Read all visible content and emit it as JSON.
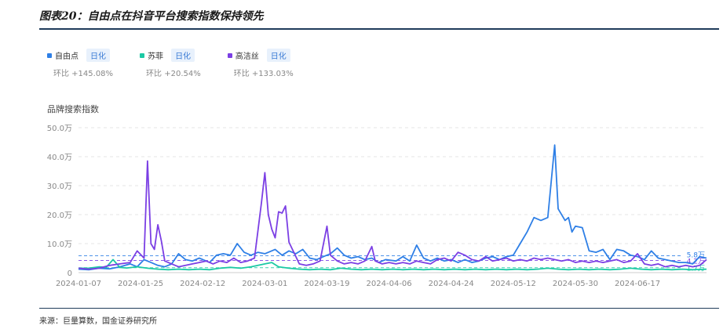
{
  "header": {
    "title": "图表20：自由点在抖音平台搜索指数保持领先"
  },
  "legend": [
    {
      "name": "自由点",
      "tag": "日化",
      "change": "环比 +145.08%",
      "color": "#2e7fe6"
    },
    {
      "name": "苏菲",
      "tag": "日化",
      "change": "环比 +20.54%",
      "color": "#1cc9a4"
    },
    {
      "name": "高洁丝",
      "tag": "日化",
      "change": "环比 +133.03%",
      "color": "#7b3fe4"
    }
  ],
  "chart_label": "品牌搜索指数",
  "footer": {
    "source": "来源：巨量算数，国金证券研究所"
  },
  "chart_data": {
    "type": "line",
    "title": "",
    "xlabel": "",
    "ylabel": "品牌搜索指数",
    "ylim": [
      0,
      50
    ],
    "y_ticks": [
      0,
      10,
      20,
      30,
      40,
      50
    ],
    "y_tick_labels": [
      "0",
      "10.0万",
      "20.0万",
      "30.0万",
      "40.0万",
      "50.0万"
    ],
    "x_range": [
      "2024-01-07",
      "2024-07-07"
    ],
    "x_tick_labels": [
      "2024-01-07",
      "2024-01-25",
      "2024-02-12",
      "2024-03-01",
      "2024-03-19",
      "2024-04-06",
      "2024-04-24",
      "2024-05-12",
      "2024-05-30",
      "2024-06-17"
    ],
    "grid": true,
    "legend_position": "top-left",
    "averages": [
      {
        "series": "自由点",
        "label": "5.8万",
        "value": 5.8,
        "color": "#2e7fe6"
      },
      {
        "series": "高洁丝",
        "label": "4.2万",
        "value": 4.2,
        "color": "#7b3fe4"
      },
      {
        "series": "苏菲",
        "label": "1.7万",
        "value": 1.7,
        "color": "#1cc9a4"
      }
    ],
    "series": [
      {
        "name": "自由点",
        "color": "#2e7fe6",
        "points": [
          [
            "2024-01-07",
            1.2
          ],
          [
            "2024-01-10",
            1.0
          ],
          [
            "2024-01-13",
            1.5
          ],
          [
            "2024-01-16",
            1.3
          ],
          [
            "2024-01-19",
            2.0
          ],
          [
            "2024-01-22",
            3.0
          ],
          [
            "2024-01-24",
            2.0
          ],
          [
            "2024-01-26",
            4.5
          ],
          [
            "2024-01-28",
            3.5
          ],
          [
            "2024-01-30",
            2.5
          ],
          [
            "2024-02-01",
            2.0
          ],
          [
            "2024-02-03",
            3.0
          ],
          [
            "2024-02-05",
            6.5
          ],
          [
            "2024-02-07",
            4.5
          ],
          [
            "2024-02-09",
            4.0
          ],
          [
            "2024-02-11",
            5.0
          ],
          [
            "2024-02-14",
            3.5
          ],
          [
            "2024-02-16",
            6.0
          ],
          [
            "2024-02-18",
            6.5
          ],
          [
            "2024-02-20",
            6.0
          ],
          [
            "2024-02-22",
            10.0
          ],
          [
            "2024-02-24",
            7.0
          ],
          [
            "2024-02-26",
            6.0
          ],
          [
            "2024-02-28",
            7.0
          ],
          [
            "2024-03-01",
            6.5
          ],
          [
            "2024-03-04",
            8.0
          ],
          [
            "2024-03-06",
            6.0
          ],
          [
            "2024-03-08",
            7.5
          ],
          [
            "2024-03-10",
            6.5
          ],
          [
            "2024-03-12",
            8.0
          ],
          [
            "2024-03-14",
            5.0
          ],
          [
            "2024-03-16",
            4.5
          ],
          [
            "2024-03-18",
            5.5
          ],
          [
            "2024-03-20",
            6.5
          ],
          [
            "2024-03-22",
            8.5
          ],
          [
            "2024-03-24",
            6.0
          ],
          [
            "2024-03-26",
            5.0
          ],
          [
            "2024-03-28",
            5.5
          ],
          [
            "2024-03-30",
            4.5
          ],
          [
            "2024-04-01",
            5.0
          ],
          [
            "2024-04-03",
            3.5
          ],
          [
            "2024-04-05",
            4.5
          ],
          [
            "2024-04-08",
            4.0
          ],
          [
            "2024-04-10",
            5.5
          ],
          [
            "2024-04-12",
            4.0
          ],
          [
            "2024-04-14",
            9.5
          ],
          [
            "2024-04-16",
            5.0
          ],
          [
            "2024-04-18",
            4.0
          ],
          [
            "2024-04-20",
            5.0
          ],
          [
            "2024-04-22",
            4.0
          ],
          [
            "2024-04-24",
            4.5
          ],
          [
            "2024-04-26",
            3.5
          ],
          [
            "2024-04-28",
            4.5
          ],
          [
            "2024-04-30",
            3.5
          ],
          [
            "2024-05-02",
            4.0
          ],
          [
            "2024-05-04",
            5.0
          ],
          [
            "2024-05-06",
            5.5
          ],
          [
            "2024-05-08",
            4.5
          ],
          [
            "2024-05-10",
            5.5
          ],
          [
            "2024-05-12",
            6.0
          ],
          [
            "2024-05-14",
            10.0
          ],
          [
            "2024-05-16",
            14.0
          ],
          [
            "2024-05-18",
            19.0
          ],
          [
            "2024-05-20",
            18.0
          ],
          [
            "2024-05-22",
            19.0
          ],
          [
            "2024-05-24",
            44.0
          ],
          [
            "2024-05-25",
            22.0
          ],
          [
            "2024-05-27",
            18.0
          ],
          [
            "2024-05-28",
            19.0
          ],
          [
            "2024-05-29",
            14.0
          ],
          [
            "2024-05-30",
            16.0
          ],
          [
            "2024-06-01",
            15.5
          ],
          [
            "2024-06-03",
            7.5
          ],
          [
            "2024-06-05",
            7.0
          ],
          [
            "2024-06-07",
            8.0
          ],
          [
            "2024-06-09",
            4.5
          ],
          [
            "2024-06-11",
            8.0
          ],
          [
            "2024-06-13",
            7.5
          ],
          [
            "2024-06-15",
            6.0
          ],
          [
            "2024-06-17",
            5.5
          ],
          [
            "2024-06-19",
            4.5
          ],
          [
            "2024-06-21",
            7.5
          ],
          [
            "2024-06-23",
            5.0
          ],
          [
            "2024-06-25",
            4.5
          ],
          [
            "2024-06-27",
            4.0
          ],
          [
            "2024-06-29",
            3.5
          ],
          [
            "2024-07-01",
            3.5
          ],
          [
            "2024-07-03",
            3.0
          ],
          [
            "2024-07-05",
            5.5
          ],
          [
            "2024-07-07",
            5.0
          ]
        ]
      },
      {
        "name": "苏菲",
        "color": "#1cc9a4",
        "points": [
          [
            "2024-01-07",
            1.5
          ],
          [
            "2024-01-10",
            1.5
          ],
          [
            "2024-01-13",
            2.0
          ],
          [
            "2024-01-15",
            1.8
          ],
          [
            "2024-01-17",
            4.5
          ],
          [
            "2024-01-19",
            1.8
          ],
          [
            "2024-01-21",
            1.6
          ],
          [
            "2024-01-24",
            2.0
          ],
          [
            "2024-01-27",
            1.5
          ],
          [
            "2024-01-30",
            1.2
          ],
          [
            "2024-02-02",
            1.0
          ],
          [
            "2024-02-05",
            1.2
          ],
          [
            "2024-02-08",
            1.0
          ],
          [
            "2024-02-11",
            1.2
          ],
          [
            "2024-02-14",
            1.0
          ],
          [
            "2024-02-17",
            1.5
          ],
          [
            "2024-02-20",
            1.8
          ],
          [
            "2024-02-23",
            1.5
          ],
          [
            "2024-02-26",
            2.0
          ],
          [
            "2024-03-01",
            3.0
          ],
          [
            "2024-03-03",
            3.5
          ],
          [
            "2024-03-05",
            2.0
          ],
          [
            "2024-03-08",
            1.5
          ],
          [
            "2024-03-11",
            1.2
          ],
          [
            "2024-03-14",
            1.0
          ],
          [
            "2024-03-17",
            1.2
          ],
          [
            "2024-03-20",
            1.0
          ],
          [
            "2024-03-23",
            1.5
          ],
          [
            "2024-03-26",
            1.2
          ],
          [
            "2024-03-29",
            1.0
          ],
          [
            "2024-04-01",
            1.2
          ],
          [
            "2024-04-04",
            1.0
          ],
          [
            "2024-04-07",
            1.2
          ],
          [
            "2024-04-10",
            1.0
          ],
          [
            "2024-04-13",
            1.2
          ],
          [
            "2024-04-16",
            1.0
          ],
          [
            "2024-04-19",
            1.2
          ],
          [
            "2024-04-22",
            1.0
          ],
          [
            "2024-04-25",
            1.2
          ],
          [
            "2024-04-28",
            1.0
          ],
          [
            "2024-05-01",
            1.2
          ],
          [
            "2024-05-04",
            1.0
          ],
          [
            "2024-05-07",
            1.2
          ],
          [
            "2024-05-10",
            1.0
          ],
          [
            "2024-05-13",
            1.2
          ],
          [
            "2024-05-16",
            1.0
          ],
          [
            "2024-05-19",
            1.2
          ],
          [
            "2024-05-22",
            1.5
          ],
          [
            "2024-05-25",
            1.2
          ],
          [
            "2024-05-28",
            1.0
          ],
          [
            "2024-05-31",
            1.2
          ],
          [
            "2024-06-03",
            1.0
          ],
          [
            "2024-06-06",
            1.2
          ],
          [
            "2024-06-09",
            1.0
          ],
          [
            "2024-06-12",
            1.2
          ],
          [
            "2024-06-15",
            1.5
          ],
          [
            "2024-06-18",
            1.2
          ],
          [
            "2024-06-21",
            1.0
          ],
          [
            "2024-06-24",
            1.2
          ],
          [
            "2024-06-27",
            1.0
          ],
          [
            "2024-06-30",
            1.2
          ],
          [
            "2024-07-03",
            1.0
          ],
          [
            "2024-07-07",
            1.2
          ]
        ]
      },
      {
        "name": "高洁丝",
        "color": "#7b3fe4",
        "points": [
          [
            "2024-01-07",
            1.5
          ],
          [
            "2024-01-10",
            1.2
          ],
          [
            "2024-01-13",
            1.5
          ],
          [
            "2024-01-16",
            2.5
          ],
          [
            "2024-01-19",
            3.0
          ],
          [
            "2024-01-22",
            3.5
          ],
          [
            "2024-01-24",
            7.5
          ],
          [
            "2024-01-26",
            5.0
          ],
          [
            "2024-01-27",
            38.5
          ],
          [
            "2024-01-28",
            10.0
          ],
          [
            "2024-01-29",
            8.0
          ],
          [
            "2024-01-30",
            16.5
          ],
          [
            "2024-01-31",
            11.0
          ],
          [
            "2024-02-01",
            4.0
          ],
          [
            "2024-02-03",
            3.0
          ],
          [
            "2024-02-05",
            2.0
          ],
          [
            "2024-02-07",
            2.5
          ],
          [
            "2024-02-09",
            3.0
          ],
          [
            "2024-02-11",
            3.5
          ],
          [
            "2024-02-13",
            4.0
          ],
          [
            "2024-02-15",
            3.0
          ],
          [
            "2024-02-17",
            4.0
          ],
          [
            "2024-02-19",
            3.5
          ],
          [
            "2024-02-21",
            5.0
          ],
          [
            "2024-02-23",
            3.5
          ],
          [
            "2024-02-25",
            4.0
          ],
          [
            "2024-02-27",
            5.0
          ],
          [
            "2024-02-29",
            24.0
          ],
          [
            "2024-03-01",
            34.5
          ],
          [
            "2024-03-02",
            20.0
          ],
          [
            "2024-03-03",
            15.0
          ],
          [
            "2024-03-04",
            12.0
          ],
          [
            "2024-03-05",
            21.0
          ],
          [
            "2024-03-06",
            20.5
          ],
          [
            "2024-03-07",
            23.0
          ],
          [
            "2024-03-08",
            10.5
          ],
          [
            "2024-03-09",
            8.0
          ],
          [
            "2024-03-11",
            3.0
          ],
          [
            "2024-03-13",
            2.5
          ],
          [
            "2024-03-15",
            3.0
          ],
          [
            "2024-03-17",
            4.0
          ],
          [
            "2024-03-19",
            16.0
          ],
          [
            "2024-03-20",
            6.0
          ],
          [
            "2024-03-22",
            4.0
          ],
          [
            "2024-03-24",
            3.0
          ],
          [
            "2024-03-26",
            3.5
          ],
          [
            "2024-03-28",
            3.0
          ],
          [
            "2024-03-30",
            4.0
          ],
          [
            "2024-04-01",
            9.0
          ],
          [
            "2024-04-02",
            4.0
          ],
          [
            "2024-04-04",
            3.0
          ],
          [
            "2024-04-06",
            3.5
          ],
          [
            "2024-04-08",
            3.0
          ],
          [
            "2024-04-10",
            3.5
          ],
          [
            "2024-04-12",
            3.0
          ],
          [
            "2024-04-14",
            4.0
          ],
          [
            "2024-04-16",
            3.5
          ],
          [
            "2024-04-18",
            3.0
          ],
          [
            "2024-04-20",
            4.5
          ],
          [
            "2024-04-22",
            5.0
          ],
          [
            "2024-04-24",
            4.0
          ],
          [
            "2024-04-26",
            7.0
          ],
          [
            "2024-04-28",
            6.0
          ],
          [
            "2024-04-30",
            4.5
          ],
          [
            "2024-05-02",
            4.0
          ],
          [
            "2024-05-04",
            5.5
          ],
          [
            "2024-05-06",
            4.0
          ],
          [
            "2024-05-08",
            4.5
          ],
          [
            "2024-05-10",
            5.0
          ],
          [
            "2024-05-12",
            4.0
          ],
          [
            "2024-05-14",
            4.5
          ],
          [
            "2024-05-16",
            4.0
          ],
          [
            "2024-05-18",
            5.0
          ],
          [
            "2024-05-20",
            4.5
          ],
          [
            "2024-05-22",
            5.0
          ],
          [
            "2024-05-24",
            4.5
          ],
          [
            "2024-05-26",
            4.0
          ],
          [
            "2024-05-28",
            4.5
          ],
          [
            "2024-05-30",
            3.5
          ],
          [
            "2024-06-01",
            4.0
          ],
          [
            "2024-06-03",
            3.5
          ],
          [
            "2024-06-05",
            4.0
          ],
          [
            "2024-06-07",
            3.5
          ],
          [
            "2024-06-09",
            4.0
          ],
          [
            "2024-06-11",
            4.5
          ],
          [
            "2024-06-13",
            3.5
          ],
          [
            "2024-06-15",
            4.0
          ],
          [
            "2024-06-17",
            6.5
          ],
          [
            "2024-06-19",
            3.0
          ],
          [
            "2024-06-21",
            2.5
          ],
          [
            "2024-06-23",
            3.0
          ],
          [
            "2024-06-25",
            2.0
          ],
          [
            "2024-06-27",
            2.5
          ],
          [
            "2024-06-29",
            2.0
          ],
          [
            "2024-07-01",
            2.5
          ],
          [
            "2024-07-03",
            2.0
          ],
          [
            "2024-07-05",
            2.5
          ],
          [
            "2024-07-07",
            4.5
          ]
        ]
      }
    ]
  }
}
